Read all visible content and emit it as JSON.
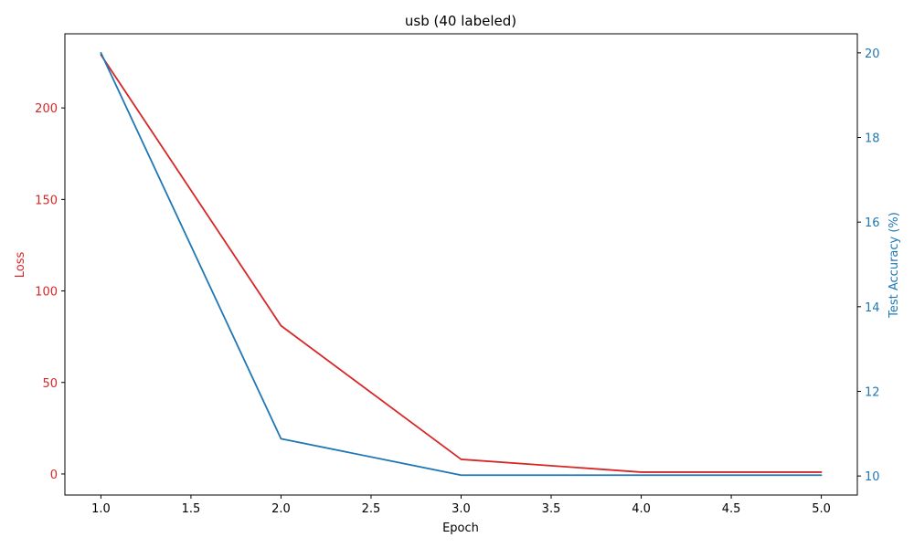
{
  "chart_data": {
    "type": "line",
    "title": "usb (40 labeled)",
    "xlabel": "Epoch",
    "ylabel_left": "Loss",
    "ylabel_right": "Test Accuracy (%)",
    "x": [
      1,
      2,
      3,
      4,
      5
    ],
    "xlim": [
      0.8,
      5.2
    ],
    "x_ticks": [
      "1.0",
      "1.5",
      "2.0",
      "2.5",
      "3.0",
      "3.5",
      "4.0",
      "4.5",
      "5.0"
    ],
    "x_tick_values": [
      1.0,
      1.5,
      2.0,
      2.5,
      3.0,
      3.5,
      4.0,
      4.5,
      5.0
    ],
    "ylim_left": [
      -11.5,
      240.5
    ],
    "y_ticks_left": [
      "0",
      "50",
      "100",
      "150",
      "200"
    ],
    "y_tick_values_left": [
      0,
      50,
      100,
      150,
      200
    ],
    "ylim_right": [
      9.55,
      20.45
    ],
    "y_ticks_right": [
      "10",
      "12",
      "14",
      "16",
      "18",
      "20"
    ],
    "y_tick_values_right": [
      10,
      12,
      14,
      16,
      18,
      20
    ],
    "grid": false,
    "series": [
      {
        "name": "Loss",
        "axis": "left",
        "color": "#d62728",
        "values": [
          229,
          81,
          8,
          1,
          1
        ]
      },
      {
        "name": "Test Accuracy (%)",
        "axis": "right",
        "color": "#1f77b4",
        "values": [
          20.0,
          10.88,
          10.02,
          10.02,
          10.02
        ]
      }
    ]
  }
}
